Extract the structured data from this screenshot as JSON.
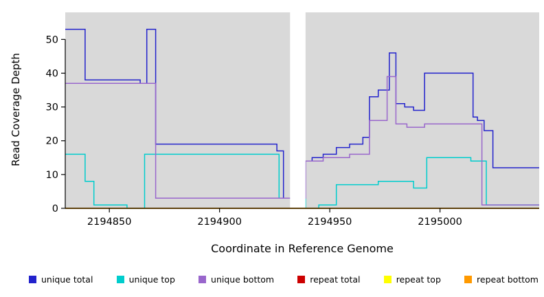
{
  "chart_data": {
    "type": "line",
    "step": true,
    "xlabel": "Coordinate in Reference Genome",
    "ylabel": "Read Coverage Depth",
    "xlim": [
      2194830,
      2195045
    ],
    "ylim": [
      0,
      58
    ],
    "x_ticks": [
      2194850,
      2194900,
      2194950,
      2195000
    ],
    "y_ticks": [
      0,
      10,
      20,
      30,
      40,
      50
    ],
    "plot_background": "#d9d9d9",
    "figure_background": "#ffffff",
    "masked_region": [
      2194932,
      2194939
    ],
    "grid": false,
    "legend_position": "bottom",
    "series": [
      {
        "name": "unique total",
        "color": "#2222cc",
        "points": [
          [
            2194830,
            53
          ],
          [
            2194839,
            38
          ],
          [
            2194864,
            37
          ],
          [
            2194867,
            53
          ],
          [
            2194871,
            19
          ],
          [
            2194926,
            17
          ],
          [
            2194929,
            3
          ],
          [
            2194939,
            14
          ],
          [
            2194942,
            15
          ],
          [
            2194947,
            16
          ],
          [
            2194953,
            18
          ],
          [
            2194959,
            19
          ],
          [
            2194965,
            21
          ],
          [
            2194968,
            33
          ],
          [
            2194972,
            35
          ],
          [
            2194977,
            46
          ],
          [
            2194980,
            31
          ],
          [
            2194984,
            30
          ],
          [
            2194988,
            29
          ],
          [
            2194993,
            40
          ],
          [
            2195015,
            27
          ],
          [
            2195017,
            26
          ],
          [
            2195020,
            23
          ],
          [
            2195024,
            12
          ]
        ]
      },
      {
        "name": "unique top",
        "color": "#00cdcd",
        "points": [
          [
            2194830,
            16
          ],
          [
            2194839,
            8
          ],
          [
            2194843,
            1
          ],
          [
            2194858,
            0
          ],
          [
            2194866,
            16
          ],
          [
            2194927,
            3
          ],
          [
            2194939,
            0
          ],
          [
            2194945,
            1
          ],
          [
            2194953,
            7
          ],
          [
            2194972,
            8
          ],
          [
            2194988,
            6
          ],
          [
            2194994,
            15
          ],
          [
            2195014,
            14
          ],
          [
            2195021,
            1
          ]
        ]
      },
      {
        "name": "unique bottom",
        "color": "#9966cc",
        "points": [
          [
            2194830,
            37
          ],
          [
            2194871,
            3
          ],
          [
            2194939,
            14
          ],
          [
            2194947,
            15
          ],
          [
            2194959,
            16
          ],
          [
            2194968,
            26
          ],
          [
            2194976,
            39
          ],
          [
            2194980,
            25
          ],
          [
            2194985,
            24
          ],
          [
            2194993,
            25
          ],
          [
            2195019,
            1
          ]
        ]
      },
      {
        "name": "repeat total",
        "color": "#cc0000",
        "points": [
          [
            2194830,
            0
          ]
        ]
      },
      {
        "name": "repeat top",
        "color": "#ffff00",
        "points": [
          [
            2194830,
            0
          ]
        ]
      },
      {
        "name": "repeat bottom",
        "color": "#ff9900",
        "points": [
          [
            2194830,
            0
          ]
        ]
      }
    ]
  }
}
